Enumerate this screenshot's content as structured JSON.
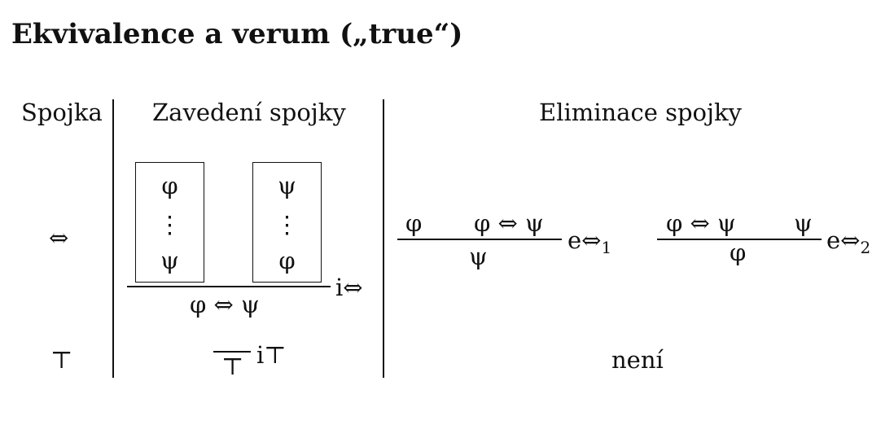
{
  "title": "Ekvivalence a verum („true“)",
  "headers": {
    "connective": "Spojka",
    "introduction": "Zavedení spojky",
    "elimination": "Eliminace spojky"
  },
  "iff_row": {
    "connective": "⇔",
    "intro": {
      "box_left": {
        "top": "φ",
        "dots": "⋮",
        "bottom": "ψ"
      },
      "box_right": {
        "top": "ψ",
        "dots": "⋮",
        "bottom": "φ"
      },
      "conclusion": "φ ⇔ ψ",
      "rule_label": "i⇔"
    },
    "elim1": {
      "premise_left": "φ",
      "premise_right": "φ ⇔ ψ",
      "conclusion": "ψ",
      "rule_label": "e⇔",
      "rule_sub": "1"
    },
    "elim2": {
      "premise_left": "φ ⇔ ψ",
      "premise_right": "ψ",
      "conclusion": "φ",
      "rule_label": "e⇔",
      "rule_sub": "2"
    }
  },
  "top_row": {
    "connective": "⊤",
    "intro": {
      "conclusion": "⊤",
      "rule_label": "i⊤"
    },
    "elimination": "není"
  }
}
